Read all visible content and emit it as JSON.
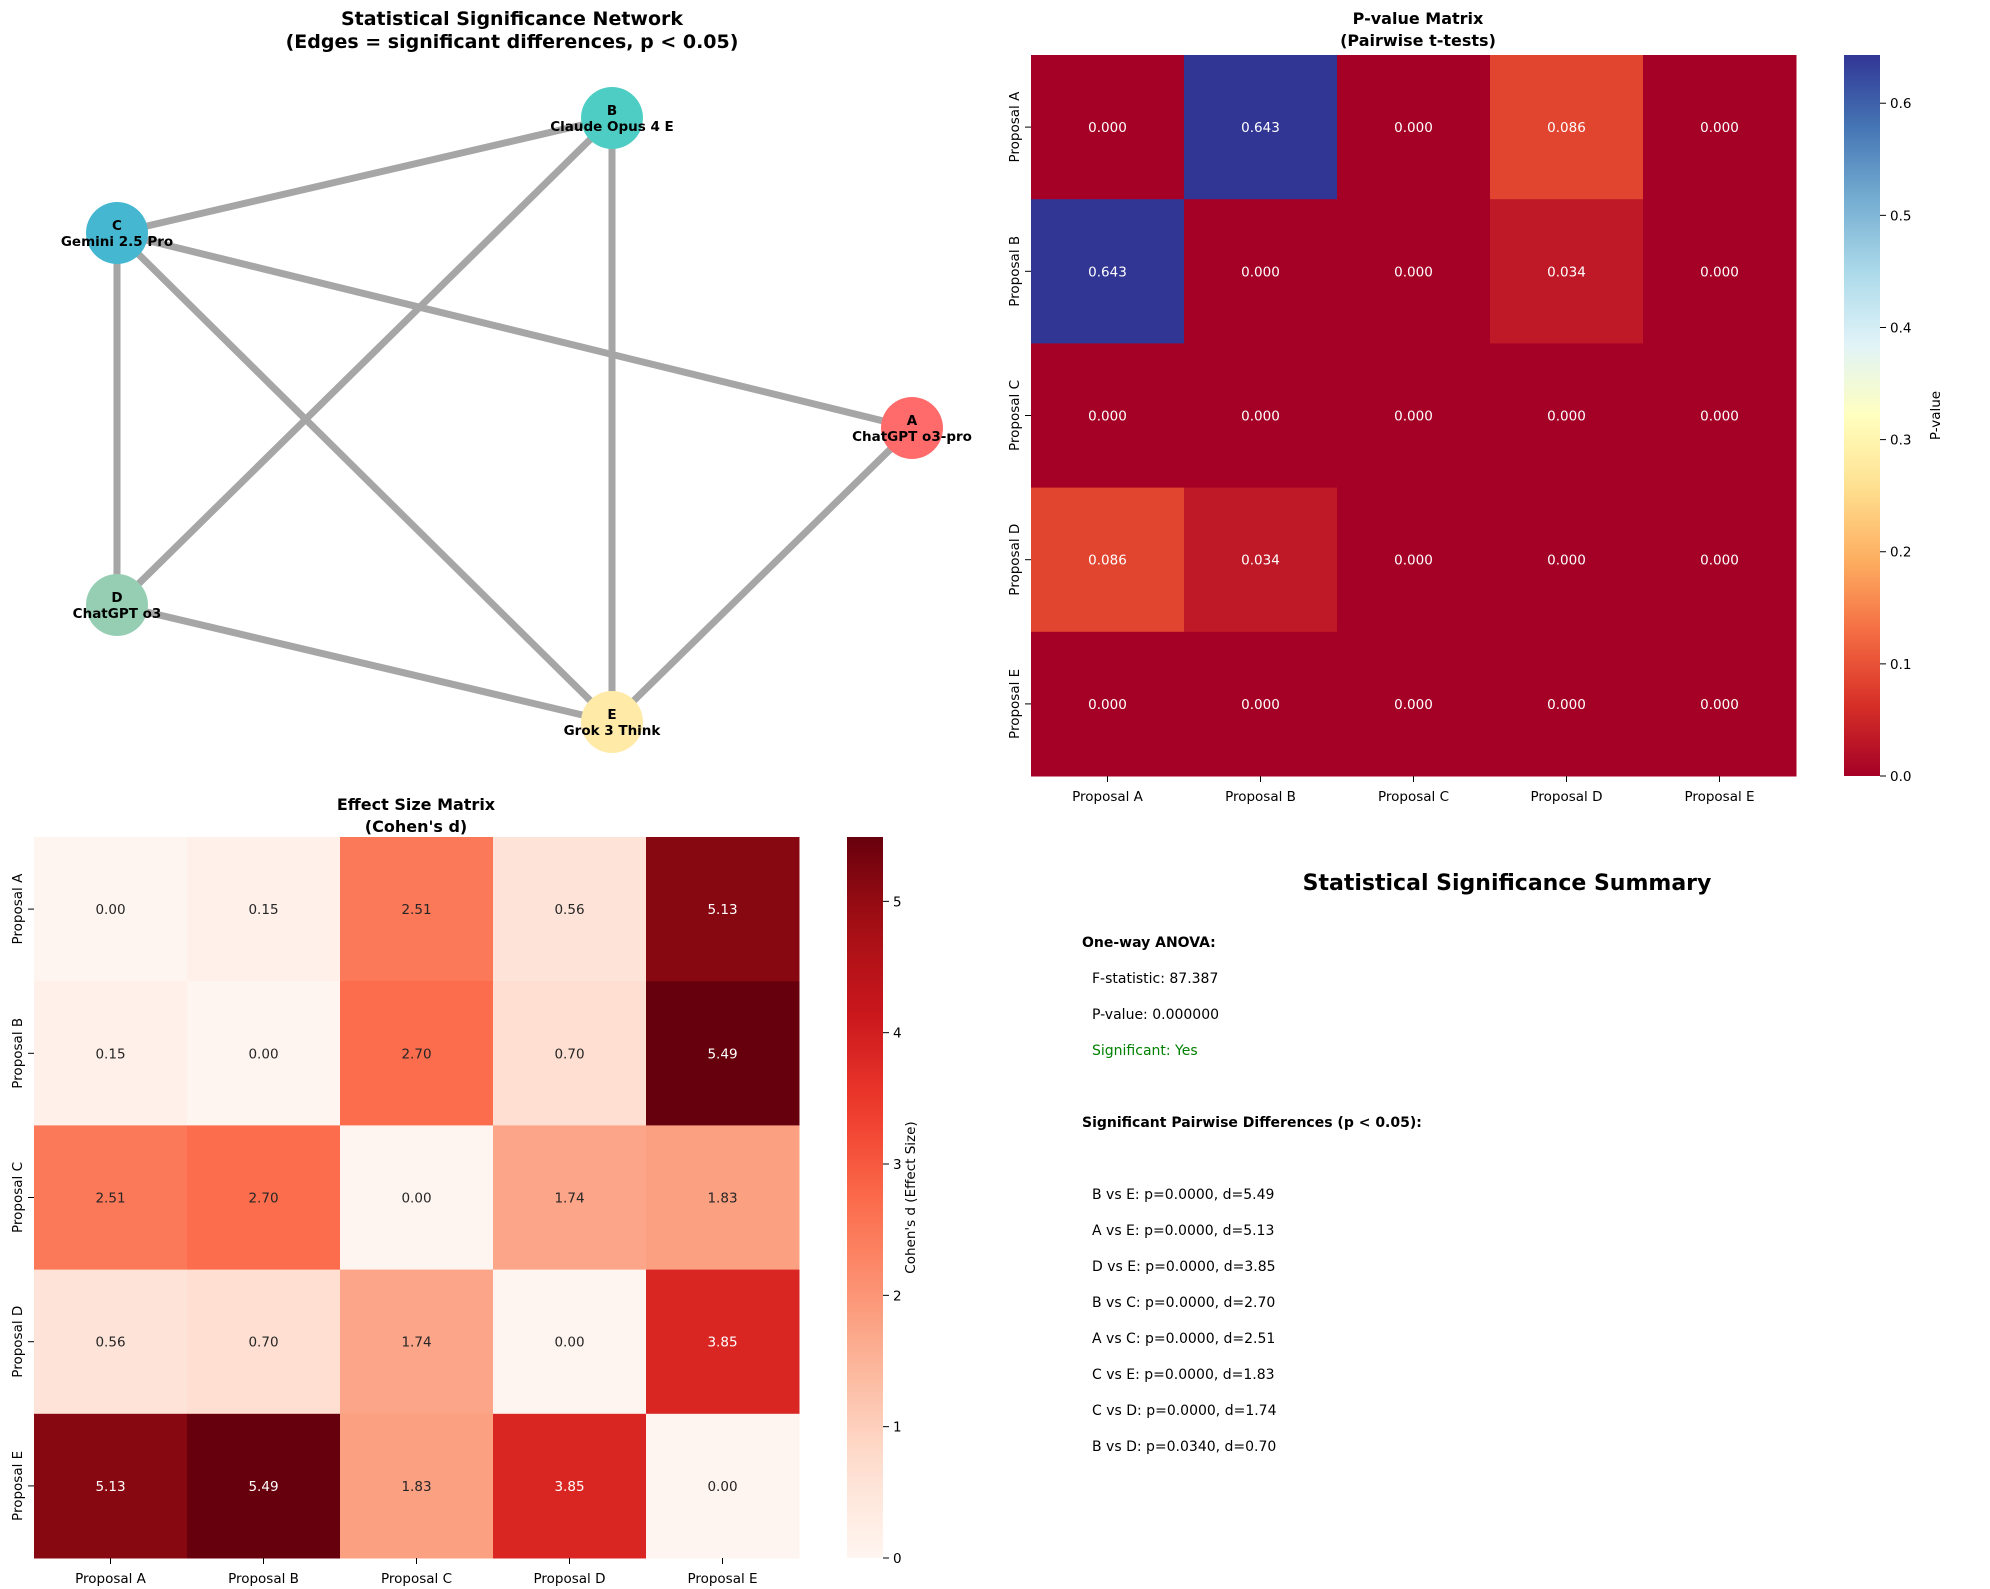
{
  "chart_data": [
    {
      "type": "network",
      "title": "Statistical Significance Network",
      "subtitle": "(Edges = significant differences, p < 0.05)",
      "nodes": [
        {
          "id": "A",
          "label": "ChatGPT o3-pro",
          "color": "#ff6b6b"
        },
        {
          "id": "B",
          "label": "Claude Opus 4 E",
          "color": "#4ecdc4"
        },
        {
          "id": "C",
          "label": "Gemini 2.5 Pro",
          "color": "#45b7d1"
        },
        {
          "id": "D",
          "label": "ChatGPT o3",
          "color": "#96ceb4"
        },
        {
          "id": "E",
          "label": "Grok 3 Think",
          "color": "#ffeaa7"
        }
      ],
      "edges": [
        [
          "B",
          "E"
        ],
        [
          "A",
          "E"
        ],
        [
          "D",
          "E"
        ],
        [
          "B",
          "C"
        ],
        [
          "A",
          "C"
        ],
        [
          "C",
          "E"
        ],
        [
          "C",
          "D"
        ],
        [
          "B",
          "D"
        ]
      ]
    },
    {
      "type": "heatmap",
      "title": "P-value Matrix",
      "subtitle": "(Pairwise t-tests)",
      "categories": [
        "Proposal A",
        "Proposal B",
        "Proposal C",
        "Proposal D",
        "Proposal E"
      ],
      "values": [
        [
          0.0,
          0.643,
          0.0,
          0.086,
          0.0
        ],
        [
          0.643,
          0.0,
          0.0,
          0.034,
          0.0
        ],
        [
          0.0,
          0.0,
          0.0,
          0.0,
          0.0
        ],
        [
          0.086,
          0.034,
          0.0,
          0.0,
          0.0
        ],
        [
          0.0,
          0.0,
          0.0,
          0.0,
          0.0
        ]
      ],
      "format": "0.000",
      "colormap": "RdYlBu",
      "vmin": 0,
      "vmax": 0.643,
      "colorbar_label": "P-value",
      "colorbar_ticks": [
        "0.0",
        "0.1",
        "0.2",
        "0.3",
        "0.4",
        "0.5",
        "0.6"
      ]
    },
    {
      "type": "heatmap",
      "title": "Effect Size Matrix",
      "subtitle": "(Cohen's d)",
      "categories": [
        "Proposal A",
        "Proposal B",
        "Proposal C",
        "Proposal D",
        "Proposal E"
      ],
      "values": [
        [
          0.0,
          0.15,
          2.51,
          0.56,
          5.13
        ],
        [
          0.15,
          0.0,
          2.7,
          0.7,
          5.49
        ],
        [
          2.51,
          2.7,
          0.0,
          1.74,
          1.83
        ],
        [
          0.56,
          0.7,
          1.74,
          0.0,
          3.85
        ],
        [
          5.13,
          5.49,
          1.83,
          3.85,
          0.0
        ]
      ],
      "format": "0.00",
      "colormap": "Reds",
      "vmin": 0,
      "vmax": 5.49,
      "colorbar_label": "Cohen's d (Effect Size)",
      "colorbar_ticks": [
        "0",
        "1",
        "2",
        "3",
        "4",
        "5"
      ]
    }
  ],
  "summary": {
    "title": "Statistical Significance Summary",
    "anova_heading": "One-way ANOVA:",
    "f_stat": "F-statistic: 87.387",
    "p_value": "P-value: 0.000000",
    "significant": "Significant: Yes",
    "significant_color": "#008000",
    "pairs_heading": "Significant Pairwise Differences (p < 0.05):",
    "pairs": [
      "B vs E: p=0.0000, d=5.49",
      "A vs E: p=0.0000, d=5.13",
      "D vs E: p=0.0000, d=3.85",
      "B vs C: p=0.0000, d=2.70",
      "A vs C: p=0.0000, d=2.51",
      "C vs E: p=0.0000, d=1.83",
      "C vs D: p=0.0000, d=1.74",
      "B vs D: p=0.0340, d=0.70"
    ]
  }
}
